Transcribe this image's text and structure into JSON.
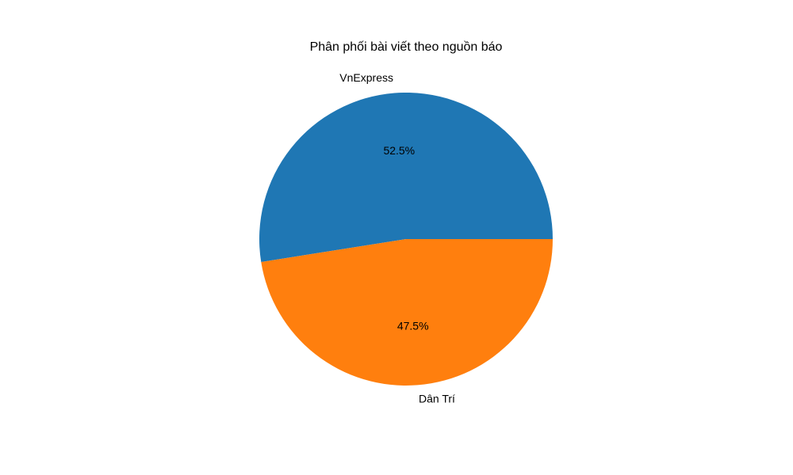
{
  "chart_data": {
    "type": "pie",
    "title": "Phân phối bài viết theo nguồn báo",
    "labels": [
      "VnExpress",
      "Dân Trí"
    ],
    "values": [
      52.5,
      47.5
    ],
    "value_labels": [
      "52.5%",
      "47.5%"
    ],
    "colors": [
      "#1f77b4",
      "#ff7f0e"
    ],
    "start_angle_deg": 0,
    "direction": "counterclockwise"
  }
}
